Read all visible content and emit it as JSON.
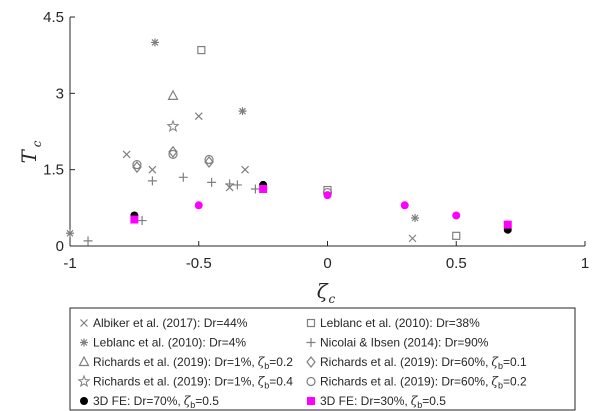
{
  "chart_data": {
    "type": "scatter",
    "xlabel": "ζ",
    "xlabel_sub": "c",
    "ylabel": "T",
    "ylabel_sub": "c",
    "xlim": [
      -1,
      1
    ],
    "ylim": [
      0,
      4.5
    ],
    "xticks": [
      -1,
      -0.5,
      0,
      0.5,
      1
    ],
    "xtick_labels": [
      "-1",
      "-0.5",
      "0",
      "0.5",
      "1"
    ],
    "yticks": [
      0,
      1.5,
      3,
      4.5
    ],
    "ytick_labels": [
      "0",
      "1.5",
      "3",
      "4.5"
    ],
    "grid": false,
    "legend_position": "bottom-outside",
    "series": [
      {
        "name": "Albiker et al. (2017): Dr=44%",
        "marker": "x",
        "color": "#7f7f7f",
        "points": [
          [
            -0.78,
            1.8
          ],
          [
            -0.68,
            1.5
          ],
          [
            -0.5,
            2.55
          ],
          [
            -0.38,
            1.15
          ],
          [
            -0.32,
            1.5
          ],
          [
            0.33,
            0.15
          ]
        ]
      },
      {
        "name": "Leblanc et al. (2010): Dr=38%",
        "marker": "square-open",
        "color": "#7f7f7f",
        "points": [
          [
            -0.49,
            3.85
          ],
          [
            0,
            1.1
          ],
          [
            0.5,
            0.2
          ]
        ]
      },
      {
        "name": "Leblanc et al. (2010): Dr=4%",
        "marker": "asterisk",
        "color": "#7f7f7f",
        "points": [
          [
            -1.0,
            0.25
          ],
          [
            -0.67,
            4.0
          ],
          [
            -0.33,
            2.65
          ],
          [
            0.34,
            0.55
          ]
        ]
      },
      {
        "name": "Nicolai & Ibsen (2014): Dr=90%",
        "marker": "plus",
        "color": "#7f7f7f",
        "points": [
          [
            -0.93,
            0.1
          ],
          [
            -0.72,
            0.5
          ],
          [
            -0.68,
            1.28
          ],
          [
            -0.56,
            1.35
          ],
          [
            -0.45,
            1.25
          ],
          [
            -0.38,
            1.22
          ],
          [
            -0.35,
            1.2
          ],
          [
            -0.28,
            1.12
          ]
        ]
      },
      {
        "name": "Richards et al. (2019): Dr=1%,",
        "zeta_b": "=0.2",
        "marker": "triangle-open",
        "color": "#7f7f7f",
        "points": [
          [
            -0.6,
            2.95
          ]
        ]
      },
      {
        "name": "Richards et al. (2019): Dr=60%,",
        "zeta_b": "=0.1",
        "marker": "diamond-open",
        "color": "#7f7f7f",
        "points": [
          [
            -0.74,
            1.55
          ],
          [
            -0.6,
            1.85
          ],
          [
            -0.46,
            1.65
          ]
        ]
      },
      {
        "name": "Richards et al. (2019): Dr=1%,",
        "zeta_b": "=0.4",
        "marker": "star",
        "color": "#7f7f7f",
        "points": [
          [
            -0.6,
            2.35
          ]
        ]
      },
      {
        "name": "Richards et al. (2019): Dr=60%,",
        "zeta_b": "=0.2",
        "marker": "circle-open",
        "color": "#7f7f7f",
        "points": [
          [
            -0.74,
            1.6
          ],
          [
            -0.6,
            1.8
          ],
          [
            -0.46,
            1.7
          ],
          [
            0,
            1.05
          ]
        ]
      },
      {
        "name": "3D FE:  Dr=70%,",
        "zeta_b": "=0.5",
        "marker": "circle-filled",
        "color": "#000000",
        "points": [
          [
            -0.75,
            0.6
          ],
          [
            -0.25,
            1.2
          ],
          [
            0.7,
            0.32
          ]
        ]
      },
      {
        "name": "3D FE: Dr=30%,",
        "zeta_b": "=0.5",
        "marker": "square-filled",
        "color": "#ff00ff",
        "points": [
          [
            -0.75,
            0.52
          ],
          [
            -0.25,
            1.12
          ],
          [
            0.7,
            0.42
          ]
        ]
      },
      {
        "name": "",
        "marker": "circle-filled",
        "color": "#ff00ff",
        "points": [
          [
            -0.5,
            0.8
          ],
          [
            0,
            1.0
          ],
          [
            0.3,
            0.8
          ],
          [
            0.5,
            0.6
          ]
        ]
      }
    ],
    "legend_zeta_symbol": "ζ",
    "legend_zeta_sub": "b"
  }
}
